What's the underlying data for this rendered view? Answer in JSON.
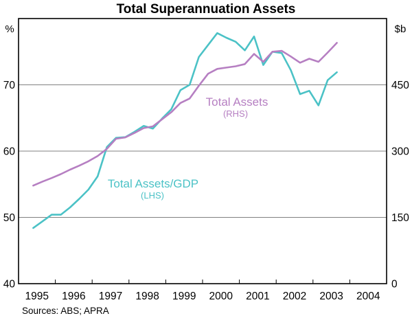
{
  "title": "Total Superannuation Assets",
  "source_note": "Sources: ABS; APRA",
  "left_axis_unit": "%",
  "right_axis_unit": "$b",
  "series_labels": {
    "rhs_line1": "Total Assets",
    "rhs_line2": "(RHS)",
    "lhs_line1": "Total Assets/GDP",
    "lhs_line2": "(LHS)"
  },
  "colors": {
    "lhs_series": "#4BC2C6",
    "rhs_series": "#B67FC2",
    "gridline": "#808080",
    "frame": "#000000",
    "text": "#000000"
  },
  "chart_data": {
    "type": "line",
    "title": "Total Superannuation Assets",
    "grid": "horizontal-only",
    "legend_position": "inline-annotations",
    "x_axis": {
      "domain": [
        1995,
        2005
      ],
      "labels": [
        "1995",
        "1996",
        "1997",
        "1998",
        "1999",
        "2000",
        "2001",
        "2002",
        "2003",
        "2004"
      ],
      "year_boundary_ticks": [
        1996,
        1997,
        1998,
        1999,
        2000,
        2001,
        2002,
        2003,
        2004
      ]
    },
    "y_left": {
      "unit": "%",
      "range": [
        40,
        80
      ],
      "ticks": [
        40,
        50,
        60,
        70
      ]
    },
    "y_right": {
      "unit": "$b",
      "range": [
        0,
        600
      ],
      "ticks": [
        0,
        150,
        300,
        450
      ]
    },
    "gridlines_left_values": [
      50,
      60,
      70
    ],
    "x_start_year": 1995.4,
    "x_step_years": 0.25,
    "quarters": [
      "1995Q2",
      "1995Q3",
      "1995Q4",
      "1996Q1",
      "1996Q2",
      "1996Q3",
      "1996Q4",
      "1997Q1",
      "1997Q2",
      "1997Q3",
      "1997Q4",
      "1998Q1",
      "1998Q2",
      "1998Q3",
      "1998Q4",
      "1999Q1",
      "1999Q2",
      "1999Q3",
      "1999Q4",
      "2000Q1",
      "2000Q2",
      "2000Q3",
      "2000Q4",
      "2001Q1",
      "2001Q2",
      "2001Q3",
      "2001Q4",
      "2002Q1",
      "2002Q2",
      "2002Q3",
      "2002Q4",
      "2003Q1",
      "2003Q2",
      "2003Q3"
    ],
    "series": [
      {
        "name": "Total Assets/GDP",
        "axis": "left",
        "unit": "%",
        "color": "#4BC2C6",
        "values": [
          48.4,
          49.4,
          50.4,
          50.4,
          51.5,
          52.8,
          54.2,
          56.2,
          60.6,
          62.0,
          62.1,
          62.9,
          63.8,
          63.4,
          64.9,
          66.3,
          69.2,
          70.0,
          74.2,
          76.0,
          77.8,
          77.1,
          76.5,
          75.2,
          77.3,
          73.0,
          75.0,
          74.8,
          72.2,
          68.6,
          69.1,
          66.9,
          70.7,
          71.9
        ]
      },
      {
        "name": "Total Assets",
        "axis": "right",
        "unit": "$b",
        "color": "#B67FC2",
        "values": [
          222,
          231,
          239,
          248,
          258,
          267,
          277,
          289,
          305,
          328,
          331,
          341,
          352,
          356,
          372,
          388,
          409,
          419,
          448,
          475,
          486,
          489,
          492,
          497,
          520,
          502,
          525,
          527,
          514,
          500,
          509,
          502,
          523,
          545
        ]
      }
    ]
  }
}
